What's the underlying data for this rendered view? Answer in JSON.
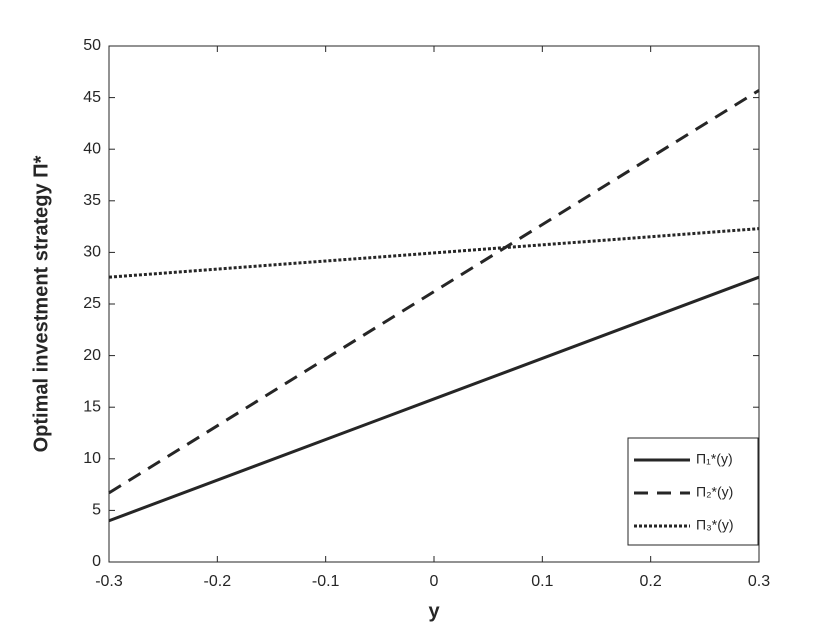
{
  "chart_data": {
    "type": "line",
    "xlabel": "y",
    "ylabel": "Optimal investment strategy Π*",
    "x": [
      -0.3,
      0,
      0.3
    ],
    "xlim": [
      -0.3,
      0.3
    ],
    "xticks": [
      -0.3,
      -0.2,
      -0.1,
      0,
      0.1,
      0.2,
      0.3
    ],
    "ylim": [
      0,
      50
    ],
    "yticks": [
      0,
      5,
      10,
      15,
      20,
      25,
      30,
      35,
      40,
      45,
      50
    ],
    "grid": false,
    "legend": "lower right",
    "series": [
      {
        "name": "Π₁*(y)",
        "color": "#262626",
        "dash": "solid",
        "values": [
          4,
          15.8,
          27.6
        ]
      },
      {
        "name": "Π₂*(y)",
        "color": "#262626",
        "dash": "dashed",
        "values": [
          6.7,
          26.2,
          45.7
        ]
      },
      {
        "name": "Π₃*(y)",
        "color": "#262626",
        "dash": "dotted",
        "values": [
          27.6,
          29.95,
          32.3
        ]
      }
    ]
  }
}
